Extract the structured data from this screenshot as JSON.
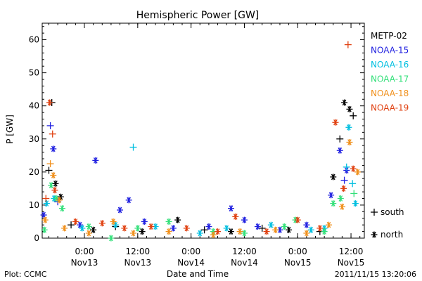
{
  "chart_data": {
    "type": "scatter",
    "title": "Hemispheric Power [GW]",
    "xlabel": "Date and Time",
    "ylabel": "P [GW]",
    "ylim": [
      0,
      65
    ],
    "yticks": [
      0,
      10,
      20,
      30,
      40,
      50,
      60
    ],
    "xlim": [
      "2011-11-12 14:30",
      "2011-11-15 15:00"
    ],
    "xticks": [
      {
        "t": "2011-11-13 00:00",
        "time": "0:00",
        "date": "Nov13"
      },
      {
        "t": "2011-11-13 12:00",
        "time": "12:00",
        "date": "Nov13"
      },
      {
        "t": "2011-11-14 00:00",
        "time": "0:00",
        "date": "Nov14"
      },
      {
        "t": "2011-11-14 12:00",
        "time": "12:00",
        "date": "Nov14"
      },
      {
        "t": "2011-11-15 00:00",
        "time": "0:00",
        "date": "Nov15"
      },
      {
        "t": "2011-11-15 12:00",
        "time": "12:00",
        "date": "Nov15"
      }
    ],
    "grid": false,
    "legend_position": "right",
    "marker_legend": [
      {
        "symbol": "+",
        "label": "south"
      },
      {
        "symbol": "*",
        "label": "north"
      }
    ],
    "series": [
      {
        "name": "METP-02",
        "color": "#000000",
        "points": [
          {
            "t": "2011-11-12 16:00",
            "v": 20.5,
            "m": "+"
          },
          {
            "t": "2011-11-12 16:40",
            "v": 41,
            "m": "+"
          },
          {
            "t": "2011-11-12 17:30",
            "v": 16.5,
            "m": "*"
          },
          {
            "t": "2011-11-12 18:40",
            "v": 12.5,
            "m": "*"
          },
          {
            "t": "2011-11-12 21:00",
            "v": 4,
            "m": "+"
          },
          {
            "t": "2011-11-13 02:00",
            "v": 2.5,
            "m": "*"
          },
          {
            "t": "2011-11-13 07:00",
            "v": 3.5,
            "m": "+"
          },
          {
            "t": "2011-11-13 13:00",
            "v": 2,
            "m": "*"
          },
          {
            "t": "2011-11-13 21:00",
            "v": 5.5,
            "m": "*"
          },
          {
            "t": "2011-11-14 03:00",
            "v": 2.5,
            "m": "+"
          },
          {
            "t": "2011-11-14 09:00",
            "v": 2,
            "m": "*"
          },
          {
            "t": "2011-11-14 16:00",
            "v": 3,
            "m": "+"
          },
          {
            "t": "2011-11-14 22:00",
            "v": 2.5,
            "m": "*"
          },
          {
            "t": "2011-11-15 05:00",
            "v": 2,
            "m": "+"
          },
          {
            "t": "2011-11-15 08:00",
            "v": 18.5,
            "m": "*"
          },
          {
            "t": "2011-11-15 09:30",
            "v": 30,
            "m": "+"
          },
          {
            "t": "2011-11-15 10:30",
            "v": 41,
            "m": "*"
          },
          {
            "t": "2011-11-15 11:40",
            "v": 39,
            "m": "*"
          },
          {
            "t": "2011-11-15 12:30",
            "v": 37,
            "m": "+"
          }
        ]
      },
      {
        "name": "NOAA-15",
        "color": "#1f1fe0",
        "points": [
          {
            "t": "2011-11-12 14:50",
            "v": 7,
            "m": "*"
          },
          {
            "t": "2011-11-12 16:20",
            "v": 34,
            "m": "+"
          },
          {
            "t": "2011-11-12 17:00",
            "v": 27,
            "m": "*"
          },
          {
            "t": "2011-11-12 18:00",
            "v": 11,
            "m": "+"
          },
          {
            "t": "2011-11-12 23:00",
            "v": 4,
            "m": "*"
          },
          {
            "t": "2011-11-13 02:30",
            "v": 23.5,
            "m": "*"
          },
          {
            "t": "2011-11-13 08:00",
            "v": 8.5,
            "m": "*"
          },
          {
            "t": "2011-11-13 10:00",
            "v": 11.5,
            "m": "*"
          },
          {
            "t": "2011-11-13 13:30",
            "v": 5,
            "m": "*"
          },
          {
            "t": "2011-11-13 20:00",
            "v": 3,
            "m": "*"
          },
          {
            "t": "2011-11-14 04:00",
            "v": 3.5,
            "m": "*"
          },
          {
            "t": "2011-11-14 09:00",
            "v": 9,
            "m": "*"
          },
          {
            "t": "2011-11-14 12:00",
            "v": 5.5,
            "m": "*"
          },
          {
            "t": "2011-11-14 15:00",
            "v": 3.5,
            "m": "*"
          },
          {
            "t": "2011-11-14 20:00",
            "v": 2.5,
            "m": "*"
          },
          {
            "t": "2011-11-15 02:00",
            "v": 4,
            "m": "*"
          },
          {
            "t": "2011-11-15 07:30",
            "v": 13,
            "m": "*"
          },
          {
            "t": "2011-11-15 09:30",
            "v": 26.5,
            "m": "*"
          },
          {
            "t": "2011-11-15 10:30",
            "v": 17.5,
            "m": "+"
          },
          {
            "t": "2011-11-15 11:00",
            "v": 20.5,
            "m": "*"
          }
        ]
      },
      {
        "name": "NOAA-16",
        "color": "#00bfe0",
        "points": [
          {
            "t": "2011-11-12 15:30",
            "v": 10.5,
            "m": "*"
          },
          {
            "t": "2011-11-12 17:10",
            "v": 12,
            "m": "*"
          },
          {
            "t": "2011-11-12 23:30",
            "v": 3,
            "m": "*"
          },
          {
            "t": "2011-11-13 07:00",
            "v": 4,
            "m": "*"
          },
          {
            "t": "2011-11-13 11:00",
            "v": 27.5,
            "m": "+"
          },
          {
            "t": "2011-11-13 16:00",
            "v": 3.5,
            "m": "*"
          },
          {
            "t": "2011-11-14 02:00",
            "v": 1.5,
            "m": "*"
          },
          {
            "t": "2011-11-14 08:00",
            "v": 3,
            "m": "*"
          },
          {
            "t": "2011-11-14 18:00",
            "v": 4,
            "m": "*"
          },
          {
            "t": "2011-11-15 03:00",
            "v": 2.5,
            "m": "*"
          },
          {
            "t": "2011-11-15 06:00",
            "v": 3,
            "m": "*"
          },
          {
            "t": "2011-11-15 11:00",
            "v": 21.5,
            "m": "+"
          },
          {
            "t": "2011-11-15 11:30",
            "v": 33.5,
            "m": "*"
          },
          {
            "t": "2011-11-15 12:20",
            "v": 16.5,
            "m": "+"
          },
          {
            "t": "2011-11-15 13:00",
            "v": 10.5,
            "m": "*"
          }
        ]
      },
      {
        "name": "NOAA-17",
        "color": "#33e07a",
        "points": [
          {
            "t": "2011-11-12 15:00",
            "v": 2.5,
            "m": "*"
          },
          {
            "t": "2011-11-12 16:30",
            "v": 16,
            "m": "*"
          },
          {
            "t": "2011-11-12 17:40",
            "v": 12,
            "m": "*"
          },
          {
            "t": "2011-11-12 19:00",
            "v": 9,
            "m": "*"
          },
          {
            "t": "2011-11-13 01:00",
            "v": 3.5,
            "m": "*"
          },
          {
            "t": "2011-11-13 06:00",
            "v": 0,
            "m": "*"
          },
          {
            "t": "2011-11-13 12:00",
            "v": 3,
            "m": "*"
          },
          {
            "t": "2011-11-13 19:00",
            "v": 5,
            "m": "*"
          },
          {
            "t": "2011-11-14 05:00",
            "v": 2,
            "m": "*"
          },
          {
            "t": "2011-11-14 12:00",
            "v": 1.5,
            "m": "*"
          },
          {
            "t": "2011-11-14 21:00",
            "v": 3.5,
            "m": "*"
          },
          {
            "t": "2011-11-14 23:30",
            "v": 5.5,
            "m": "*"
          },
          {
            "t": "2011-11-15 06:00",
            "v": 2,
            "m": "*"
          },
          {
            "t": "2011-11-15 08:00",
            "v": 10.5,
            "m": "*"
          },
          {
            "t": "2011-11-15 09:40",
            "v": 12,
            "m": "*"
          },
          {
            "t": "2011-11-15 12:40",
            "v": 13.5,
            "m": "+"
          }
        ]
      },
      {
        "name": "NOAA-18",
        "color": "#f0901c",
        "points": [
          {
            "t": "2011-11-12 15:10",
            "v": 5.5,
            "m": "*"
          },
          {
            "t": "2011-11-12 16:20",
            "v": 22.5,
            "m": "+"
          },
          {
            "t": "2011-11-12 17:00",
            "v": 19,
            "m": "*"
          },
          {
            "t": "2011-11-12 18:20",
            "v": 11.5,
            "m": "*"
          },
          {
            "t": "2011-11-12 19:30",
            "v": 3,
            "m": "*"
          },
          {
            "t": "2011-11-13 01:00",
            "v": 1.5,
            "m": "*"
          },
          {
            "t": "2011-11-13 06:30",
            "v": 5,
            "m": "*"
          },
          {
            "t": "2011-11-13 11:00",
            "v": 1.5,
            "m": "*"
          },
          {
            "t": "2011-11-13 19:00",
            "v": 2,
            "m": "*"
          },
          {
            "t": "2011-11-14 05:00",
            "v": 1,
            "m": "*"
          },
          {
            "t": "2011-11-14 11:00",
            "v": 2,
            "m": "*"
          },
          {
            "t": "2011-11-14 19:00",
            "v": 2.5,
            "m": "*"
          },
          {
            "t": "2011-11-15 02:00",
            "v": 1.5,
            "m": "*"
          },
          {
            "t": "2011-11-15 07:00",
            "v": 4,
            "m": "*"
          },
          {
            "t": "2011-11-15 10:00",
            "v": 9.5,
            "m": "*"
          },
          {
            "t": "2011-11-15 11:40",
            "v": 29,
            "m": "*"
          },
          {
            "t": "2011-11-15 13:30",
            "v": 20,
            "m": "*"
          }
        ]
      },
      {
        "name": "NOAA-19",
        "color": "#e04010",
        "points": [
          {
            "t": "2011-11-12 15:20",
            "v": 12,
            "m": "+"
          },
          {
            "t": "2011-11-12 16:10",
            "v": 41,
            "m": "*"
          },
          {
            "t": "2011-11-12 16:50",
            "v": 31.5,
            "m": "+"
          },
          {
            "t": "2011-11-12 17:20",
            "v": 14.5,
            "m": "*"
          },
          {
            "t": "2011-11-12 22:00",
            "v": 5,
            "m": "*"
          },
          {
            "t": "2011-11-13 04:00",
            "v": 4.5,
            "m": "*"
          },
          {
            "t": "2011-11-13 09:00",
            "v": 3,
            "m": "*"
          },
          {
            "t": "2011-11-13 15:00",
            "v": 3.5,
            "m": "*"
          },
          {
            "t": "2011-11-13 23:00",
            "v": 3,
            "m": "*"
          },
          {
            "t": "2011-11-14 06:00",
            "v": 2,
            "m": "*"
          },
          {
            "t": "2011-11-14 10:00",
            "v": 6.5,
            "m": "*"
          },
          {
            "t": "2011-11-14 17:00",
            "v": 2,
            "m": "*"
          },
          {
            "t": "2011-11-15 00:00",
            "v": 5.5,
            "m": "*"
          },
          {
            "t": "2011-11-15 05:00",
            "v": 3,
            "m": "*"
          },
          {
            "t": "2011-11-15 08:30",
            "v": 35,
            "m": "*"
          },
          {
            "t": "2011-11-15 10:20",
            "v": 15,
            "m": "*"
          },
          {
            "t": "2011-11-15 11:20",
            "v": 58.5,
            "m": "+"
          },
          {
            "t": "2011-11-15 12:30",
            "v": 21,
            "m": "*"
          }
        ]
      }
    ]
  },
  "footer": {
    "left": "Plot: CCMC",
    "right": "2011/11/15 13:20:06"
  }
}
